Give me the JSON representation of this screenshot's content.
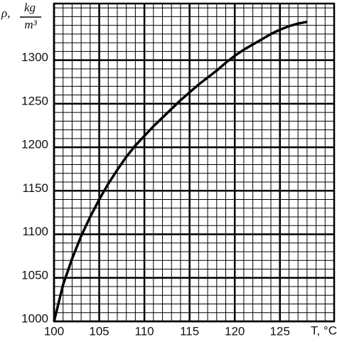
{
  "chart_data": {
    "type": "line",
    "xlabel": "T, °C",
    "ylabel": {
      "symbol": "ρ,",
      "numerator": "kg",
      "denominator": "m³"
    },
    "x": [
      100,
      101,
      102,
      103,
      104,
      105,
      106,
      107,
      108,
      109,
      110,
      111,
      112,
      113,
      114,
      115,
      116,
      117,
      118,
      119,
      120,
      121,
      122,
      123,
      124,
      125,
      126,
      127,
      128
    ],
    "values": [
      1000,
      1042,
      1072,
      1098,
      1120,
      1140,
      1158,
      1174,
      1189,
      1202,
      1213,
      1224,
      1234,
      1244,
      1254,
      1263,
      1272,
      1280,
      1288,
      1297,
      1305,
      1312,
      1318,
      1324,
      1330,
      1335,
      1339,
      1342,
      1344
    ],
    "color": "#000000",
    "xlim": [
      100,
      131
    ],
    "ylim": [
      1000,
      1365
    ],
    "xticks": [
      100,
      105,
      110,
      115,
      120,
      125
    ],
    "yticks": [
      1000,
      1050,
      1100,
      1150,
      1200,
      1250,
      1300
    ],
    "grid": true,
    "x_minor_step": 1,
    "y_minor_step": 10
  }
}
